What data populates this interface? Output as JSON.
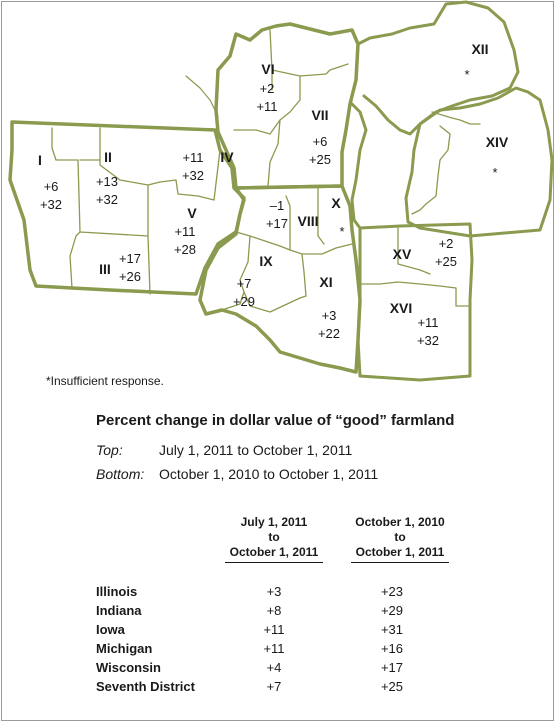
{
  "map": {
    "stroke_color": "#8a9a4e",
    "regions": [
      {
        "id": "I",
        "top": "+6",
        "bottom": "+32"
      },
      {
        "id": "II",
        "top": "+13",
        "bottom": "+32"
      },
      {
        "id": "III",
        "top": "+17",
        "bottom": "+26"
      },
      {
        "id": "IV",
        "top": "+11",
        "bottom": "+32"
      },
      {
        "id": "V",
        "top": "+11",
        "bottom": "+28"
      },
      {
        "id": "VI",
        "top": "+2",
        "bottom": "+11"
      },
      {
        "id": "VII",
        "top": "+6",
        "bottom": "+25"
      },
      {
        "id": "VIII",
        "top": "–1",
        "bottom": "+17"
      },
      {
        "id": "IX",
        "top": "+7",
        "bottom": "+29"
      },
      {
        "id": "X",
        "top": "*",
        "bottom": ""
      },
      {
        "id": "XI",
        "top": "+3",
        "bottom": "+22"
      },
      {
        "id": "XII",
        "top": "*",
        "bottom": ""
      },
      {
        "id": "XIV",
        "top": "*",
        "bottom": ""
      },
      {
        "id": "XV",
        "top": "+2",
        "bottom": "+25"
      },
      {
        "id": "XVI",
        "top": "+11",
        "bottom": "+32"
      }
    ]
  },
  "footnote": "*Insufficient response.",
  "title": "Percent change in dollar value of “good” farmland",
  "legend": {
    "top_key": "Top:",
    "top_value": "July 1, 2011 to October 1, 2011",
    "bottom_key": "Bottom:",
    "bottom_value": "October 1, 2010 to October 1, 2011"
  },
  "table": {
    "col1": {
      "l1": "July 1, 2011",
      "l2": "to",
      "l3": "October 1, 2011"
    },
    "col2": {
      "l1": "October 1, 2010",
      "l2": "to",
      "l3": "October 1, 2011"
    },
    "rows": [
      {
        "name": "Illinois",
        "v1": "+3",
        "v2": "+23"
      },
      {
        "name": "Indiana",
        "v1": "+8",
        "v2": "+29"
      },
      {
        "name": "Iowa",
        "v1": "+11",
        "v2": "+31"
      },
      {
        "name": "Michigan",
        "v1": "+11",
        "v2": "+16"
      },
      {
        "name": "Wisconsin",
        "v1": "+4",
        "v2": "+17"
      },
      {
        "name": "Seventh District",
        "v1": "+7",
        "v2": "+25"
      }
    ]
  }
}
